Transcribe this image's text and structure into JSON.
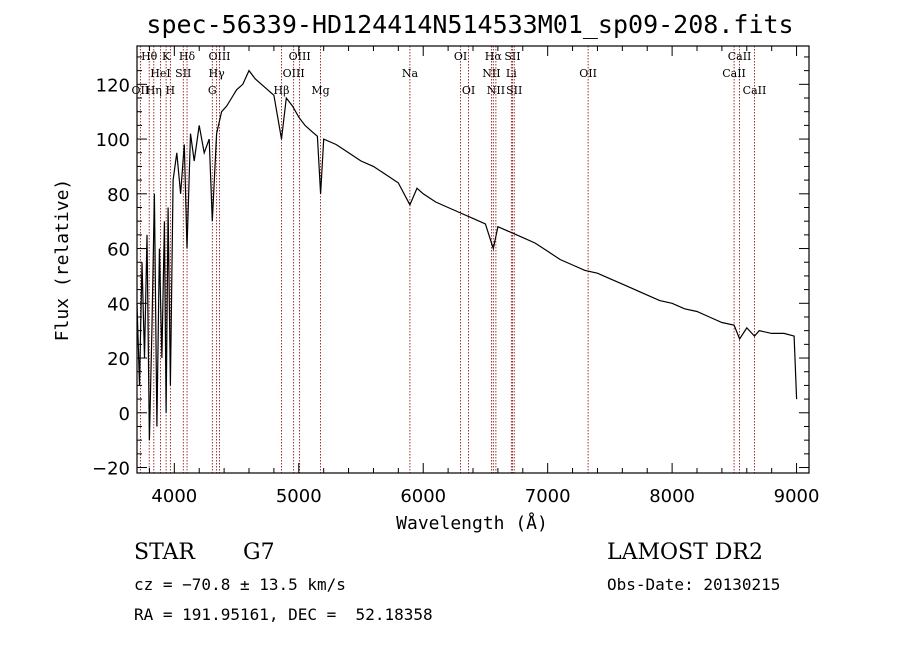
{
  "chart_data": {
    "type": "line",
    "title": "spec-56339-HD124414N514533M01_sp09-208.fits",
    "xlabel": "Wavelength (Å)",
    "ylabel": "Flux (relative)",
    "xlim": [
      3700,
      9100
    ],
    "ylim": [
      -22,
      134
    ],
    "xticks": [
      4000,
      5000,
      6000,
      7000,
      8000,
      9000
    ],
    "yticks": [
      -20,
      0,
      20,
      40,
      60,
      80,
      100,
      120
    ],
    "y_tick_labels": [
      "−20",
      "0",
      "20",
      "40",
      "60",
      "80",
      "100",
      "120"
    ],
    "grid": false,
    "series": [
      {
        "x": [
          3700,
          3720,
          3740,
          3760,
          3780,
          3800,
          3820,
          3840,
          3860,
          3880,
          3900,
          3920,
          3934,
          3950,
          3968,
          3990,
          4020,
          4050,
          4080,
          4102,
          4130,
          4160,
          4200,
          4240,
          4280,
          4305,
          4340,
          4380,
          4420,
          4460,
          4500,
          4550,
          4600,
          4650,
          4700,
          4750,
          4800,
          4861,
          4900,
          4950,
          5000,
          5050,
          5100,
          5150,
          5175,
          5200,
          5300,
          5400,
          5500,
          5600,
          5700,
          5800,
          5893,
          5950,
          6000,
          6100,
          6200,
          6300,
          6400,
          6500,
          6563,
          6600,
          6700,
          6800,
          6900,
          7000,
          7100,
          7200,
          7300,
          7400,
          7500,
          7600,
          7700,
          7800,
          7900,
          8000,
          8100,
          8200,
          8300,
          8400,
          8498,
          8542,
          8600,
          8662,
          8700,
          8800,
          8900,
          8980,
          9000
        ],
        "y": [
          40,
          10,
          55,
          20,
          65,
          -10,
          30,
          80,
          -5,
          60,
          20,
          70,
          0,
          75,
          10,
          85,
          95,
          80,
          98,
          60,
          102,
          92,
          105,
          95,
          100,
          70,
          102,
          110,
          112,
          115,
          118,
          120,
          125,
          122,
          120,
          118,
          116,
          100,
          115,
          112,
          108,
          105,
          103,
          101,
          80,
          100,
          98,
          95,
          92,
          90,
          87,
          84,
          76,
          82,
          80,
          77,
          75,
          73,
          71,
          69,
          60,
          68,
          66,
          64,
          62,
          59,
          56,
          54,
          52,
          51,
          49,
          47,
          45,
          43,
          41,
          40,
          38,
          37,
          35,
          33,
          32,
          27,
          31,
          28,
          30,
          29,
          29,
          28,
          5
        ]
      }
    ],
    "spectral_lines": [
      {
        "label": "Hθ",
        "x": 3798,
        "row": 0
      },
      {
        "label": "OII",
        "x": 3727,
        "row": 2
      },
      {
        "label": "HeI",
        "x": 3889,
        "row": 1
      },
      {
        "label": "K",
        "x": 3934,
        "row": 0
      },
      {
        "label": "Hη",
        "x": 3835,
        "row": 2
      },
      {
        "label": "H",
        "x": 3968,
        "row": 2
      },
      {
        "label": "SII",
        "x": 4072,
        "row": 1
      },
      {
        "label": "Hδ",
        "x": 4102,
        "row": 0
      },
      {
        "label": "OIII",
        "x": 4363,
        "row": 0
      },
      {
        "label": "Hγ",
        "x": 4340,
        "row": 1
      },
      {
        "label": "G",
        "x": 4305,
        "row": 2
      },
      {
        "label": "Hβ",
        "x": 4861,
        "row": 2
      },
      {
        "label": "OIII",
        "x": 5007,
        "row": 0
      },
      {
        "label": "OIII",
        "x": 4959,
        "row": 1
      },
      {
        "label": "Mg",
        "x": 5175,
        "row": 2
      },
      {
        "label": "Na",
        "x": 5893,
        "row": 1
      },
      {
        "label": "OI",
        "x": 6300,
        "row": 0
      },
      {
        "label": "OI",
        "x": 6364,
        "row": 2
      },
      {
        "label": "Hα",
        "x": 6563,
        "row": 0
      },
      {
        "label": "NII",
        "x": 6548,
        "row": 1
      },
      {
        "label": "NII",
        "x": 6584,
        "row": 2
      },
      {
        "label": "SII",
        "x": 6717,
        "row": 0
      },
      {
        "label": "Li",
        "x": 6708,
        "row": 1
      },
      {
        "label": "SII",
        "x": 6731,
        "row": 2
      },
      {
        "label": "OII",
        "x": 7325,
        "row": 1
      },
      {
        "label": "CaII",
        "x": 8542,
        "row": 0
      },
      {
        "label": "CaII",
        "x": 8498,
        "row": 1
      },
      {
        "label": "CaII",
        "x": 8662,
        "row": 2
      }
    ]
  },
  "info": {
    "object_type": "STAR",
    "subclass": "G7",
    "survey": "LAMOST DR2",
    "redshift": "cz = −70.8 ± 13.5 km/s",
    "obs_date": "Obs-Date: 20130215",
    "coords": "RA = 191.95161, DEC =  52.18358"
  },
  "colors": {
    "spectrum": "#000000",
    "line_markers": "#8b0000",
    "background": "#ffffff"
  }
}
